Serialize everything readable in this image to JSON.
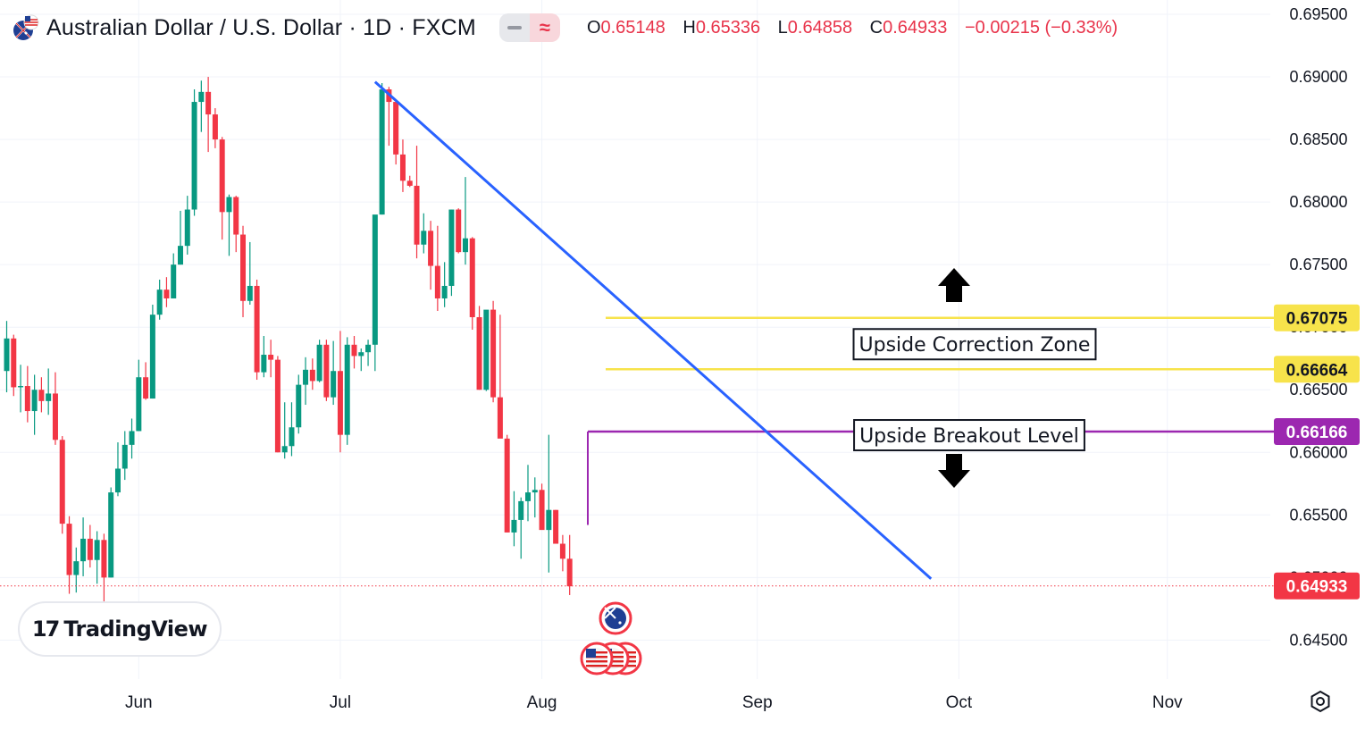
{
  "header": {
    "title": "Australian Dollar / U.S. Dollar · 1D · FXCM",
    "pill_left_icon": "minus-icon",
    "pill_right_icon": "approx-icon",
    "pill_right_glyph": "≈",
    "ohlc": {
      "o_label": "O",
      "o_value": "0.65148",
      "h_label": "H",
      "h_value": "0.65336",
      "l_label": "L",
      "l_value": "0.64858",
      "c_label": "C",
      "c_value": "0.64933",
      "change": "−0.00215 (−0.33%)"
    }
  },
  "branding": {
    "logo_mark": "17",
    "logo_text": "TradingView"
  },
  "colors": {
    "up": "#089981",
    "down": "#f23645",
    "trendline": "#2962ff",
    "zone": "#f7e34b",
    "breakout": "#9c27b0",
    "price": "#f23645"
  },
  "chart_data": {
    "type": "candlestick",
    "symbol": "AUDUSD",
    "timeframe": "1D",
    "y_axis": {
      "ylim": [
        0.6435,
        0.6955
      ],
      "ticks": [
        "0.64500",
        "0.65000",
        "0.65500",
        "0.66000",
        "0.66500",
        "0.67000",
        "0.67500",
        "0.68000",
        "0.68500",
        "0.69000",
        "0.69500"
      ]
    },
    "x_axis": {
      "ticks": [
        "Jun",
        "Jul",
        "Aug",
        "Sep",
        "Oct",
        "Nov"
      ]
    },
    "candles": [
      [
        0.6665,
        0.6705,
        0.6648,
        0.6691
      ],
      [
        0.6691,
        0.6694,
        0.6645,
        0.6652
      ],
      [
        0.6652,
        0.667,
        0.6632,
        0.6653
      ],
      [
        0.6653,
        0.6669,
        0.6624,
        0.6633
      ],
      [
        0.6633,
        0.6662,
        0.6614,
        0.665
      ],
      [
        0.665,
        0.666,
        0.6632,
        0.6641
      ],
      [
        0.6641,
        0.6667,
        0.663,
        0.6647
      ],
      [
        0.6647,
        0.6664,
        0.6606,
        0.661
      ],
      [
        0.661,
        0.6613,
        0.6535,
        0.6543
      ],
      [
        0.6543,
        0.6549,
        0.6487,
        0.6502
      ],
      [
        0.6502,
        0.6524,
        0.6488,
        0.6513
      ],
      [
        0.6513,
        0.6548,
        0.6501,
        0.6531
      ],
      [
        0.6531,
        0.6542,
        0.6508,
        0.6514
      ],
      [
        0.6514,
        0.6537,
        0.6495,
        0.653
      ],
      [
        0.653,
        0.6535,
        0.6478,
        0.65
      ],
      [
        0.65,
        0.6572,
        0.65,
        0.6568
      ],
      [
        0.6568,
        0.6608,
        0.6565,
        0.6587
      ],
      [
        0.6587,
        0.6617,
        0.6578,
        0.6606
      ],
      [
        0.6606,
        0.6627,
        0.6595,
        0.6617
      ],
      [
        0.6617,
        0.6674,
        0.6617,
        0.666
      ],
      [
        0.666,
        0.6672,
        0.6642,
        0.6643
      ],
      [
        0.6643,
        0.6718,
        0.6643,
        0.671
      ],
      [
        0.671,
        0.6738,
        0.6706,
        0.673
      ],
      [
        0.673,
        0.674,
        0.6716,
        0.6723
      ],
      [
        0.6723,
        0.6759,
        0.6723,
        0.675
      ],
      [
        0.675,
        0.6793,
        0.675,
        0.6765
      ],
      [
        0.6765,
        0.6805,
        0.6758,
        0.6794
      ],
      [
        0.6794,
        0.689,
        0.6789,
        0.688
      ],
      [
        0.688,
        0.6897,
        0.6856,
        0.6888
      ],
      [
        0.6888,
        0.69,
        0.684,
        0.687
      ],
      [
        0.687,
        0.6875,
        0.6843,
        0.685
      ],
      [
        0.685,
        0.6852,
        0.677,
        0.6792
      ],
      [
        0.6792,
        0.6806,
        0.6757,
        0.6804
      ],
      [
        0.6804,
        0.6805,
        0.676,
        0.6774
      ],
      [
        0.6774,
        0.6781,
        0.6708,
        0.6721
      ],
      [
        0.6721,
        0.6768,
        0.6718,
        0.6733
      ],
      [
        0.6733,
        0.6738,
        0.6658,
        0.6664
      ],
      [
        0.6664,
        0.6693,
        0.666,
        0.6678
      ],
      [
        0.6678,
        0.669,
        0.666,
        0.6674
      ],
      [
        0.6674,
        0.6677,
        0.66,
        0.66
      ],
      [
        0.66,
        0.664,
        0.6595,
        0.6605
      ],
      [
        0.6605,
        0.664,
        0.6597,
        0.662
      ],
      [
        0.662,
        0.6662,
        0.6615,
        0.6654
      ],
      [
        0.6654,
        0.6676,
        0.6638,
        0.6666
      ],
      [
        0.6666,
        0.6675,
        0.665,
        0.6657
      ],
      [
        0.6657,
        0.669,
        0.6656,
        0.6686
      ],
      [
        0.6686,
        0.669,
        0.6641,
        0.6644
      ],
      [
        0.6644,
        0.6689,
        0.6638,
        0.6665
      ],
      [
        0.6665,
        0.6697,
        0.66,
        0.6614
      ],
      [
        0.6614,
        0.6692,
        0.6606,
        0.6686
      ],
      [
        0.6686,
        0.6693,
        0.6667,
        0.6677
      ],
      [
        0.6677,
        0.6683,
        0.6665,
        0.668
      ],
      [
        0.668,
        0.669,
        0.6669,
        0.6686
      ],
      [
        0.6686,
        0.6788,
        0.6665,
        0.679
      ],
      [
        0.679,
        0.6895,
        0.679,
        0.689
      ],
      [
        0.689,
        0.6892,
        0.6845,
        0.688
      ],
      [
        0.688,
        0.688,
        0.683,
        0.6838
      ],
      [
        0.6838,
        0.685,
        0.6808,
        0.6817
      ],
      [
        0.6817,
        0.6821,
        0.6812,
        0.6813
      ],
      [
        0.6813,
        0.6845,
        0.6755,
        0.6766
      ],
      [
        0.6766,
        0.6791,
        0.6759,
        0.6777
      ],
      [
        0.6777,
        0.6785,
        0.673,
        0.6749
      ],
      [
        0.6749,
        0.6781,
        0.6713,
        0.6723
      ],
      [
        0.6723,
        0.6752,
        0.6716,
        0.6733
      ],
      [
        0.6733,
        0.6794,
        0.6725,
        0.6794
      ],
      [
        0.6794,
        0.6795,
        0.6759,
        0.676
      ],
      [
        0.676,
        0.682,
        0.675,
        0.6771
      ],
      [
        0.6771,
        0.6772,
        0.6698,
        0.6708
      ],
      [
        0.6708,
        0.6717,
        0.665,
        0.665
      ],
      [
        0.665,
        0.6712,
        0.6649,
        0.6714
      ],
      [
        0.6714,
        0.6721,
        0.664,
        0.6644
      ],
      [
        0.6644,
        0.671,
        0.6612,
        0.6611
      ],
      [
        0.6611,
        0.6614,
        0.6536,
        0.6536
      ],
      [
        0.6536,
        0.6569,
        0.6525,
        0.6546
      ],
      [
        0.6546,
        0.6564,
        0.6515,
        0.6561
      ],
      [
        0.6561,
        0.659,
        0.6545,
        0.6568
      ],
      [
        0.6568,
        0.658,
        0.6548,
        0.657
      ],
      [
        0.657,
        0.6575,
        0.654,
        0.6538
      ],
      [
        0.6538,
        0.6614,
        0.6504,
        0.6554
      ],
      [
        0.6554,
        0.6554,
        0.6528,
        0.6527
      ],
      [
        0.6527,
        0.6534,
        0.6505,
        0.6515
      ],
      [
        0.6515,
        0.6534,
        0.6486,
        0.6493
      ]
    ],
    "annotations": {
      "trendline": {
        "from": {
          "candle": 53,
          "price": 0.6896
        },
        "to": {
          "candle_offset": 80,
          "price": 0.6499
        }
      },
      "upper_zone_level": {
        "value": 0.67075,
        "label": "0.67075"
      },
      "lower_zone_level": {
        "value": 0.66664,
        "label": "0.66664"
      },
      "breakout_level": {
        "value": 0.66166,
        "label": "0.66166"
      },
      "zone_label": "Upside Correction Zone",
      "breakout_label": "Upside Breakout Level",
      "current_price": {
        "value": 0.64933,
        "label": "0.64933"
      }
    }
  }
}
